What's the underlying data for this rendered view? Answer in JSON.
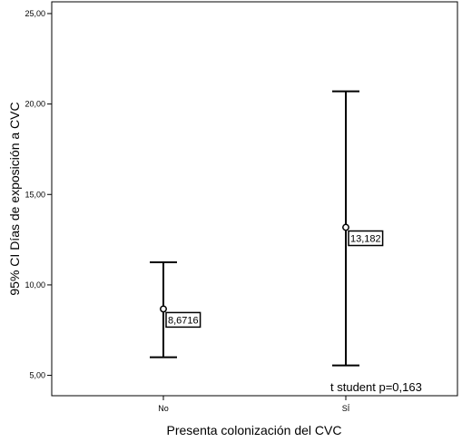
{
  "chart_data": {
    "type": "error-bar",
    "xlabel": "Presenta colonización del CVC",
    "ylabel": "95% CI  Días de exposición a CVC",
    "ylim": [
      3.875,
      25.65
    ],
    "yticks": [
      5,
      10,
      15,
      20,
      25
    ],
    "ytick_labels": [
      "5,00",
      "10,00",
      "15,00",
      "20,00",
      "25,00"
    ],
    "categories": [
      "No",
      "SÍ"
    ],
    "means": [
      8.6716,
      13.182
    ],
    "ci_lower": [
      6.0,
      5.55
    ],
    "ci_upper": [
      11.25,
      20.7
    ],
    "data_labels": [
      "8,6716",
      "13,182"
    ],
    "annotation": "t student p=0,163",
    "grid": false
  }
}
